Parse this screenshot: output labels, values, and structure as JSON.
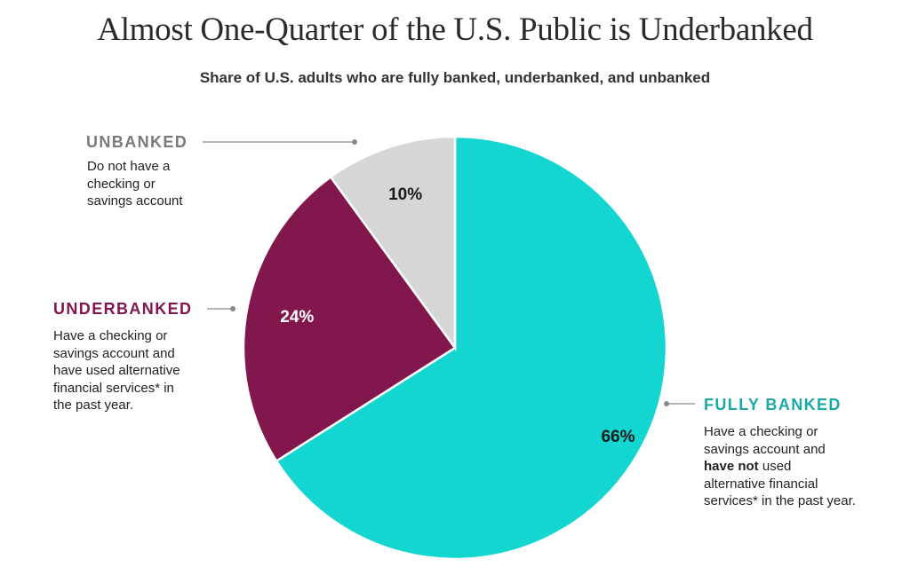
{
  "title": "Almost One-Quarter of the U.S. Public is Underbanked",
  "subtitle": "Share of U.S. adults who are fully banked, underbanked, and unbanked",
  "chart_data": {
    "type": "pie",
    "title": "Almost One-Quarter of the U.S. Public is Underbanked",
    "subtitle": "Share of U.S. adults who are fully banked, underbanked, and unbanked",
    "categories": [
      "FULLY BANKED",
      "UNDERBANKED",
      "UNBANKED"
    ],
    "values": [
      66,
      24,
      10
    ],
    "value_labels": [
      "66%",
      "24%",
      "10%"
    ],
    "colors": [
      "#12d6cf",
      "#82174d",
      "#d6d6d6"
    ],
    "label_colors": [
      "#1a1a1a",
      "#ffffff",
      "#1a1a1a"
    ],
    "title_colors": [
      "#1aa9a4",
      "#82174d",
      "#7a7a7a"
    ],
    "start": "12 o'clock",
    "direction": "clockwise"
  },
  "categories": {
    "fully": {
      "title": "FULLY BANKED",
      "desc_a": "Have a checking or",
      "desc_b": "savings account and",
      "desc_bold": "have not",
      "desc_c": " used",
      "desc_d": "alternative financial",
      "desc_e": "services* in the past year."
    },
    "under": {
      "title": "UNDERBANKED",
      "desc_a": "Have a checking or",
      "desc_b": "savings account and",
      "desc_c": "have used alternative",
      "desc_d": "financial services* in",
      "desc_e": "the past year."
    },
    "un": {
      "title": "UNBANKED",
      "desc_a": "Do not have a",
      "desc_b": "checking or",
      "desc_c": "savings account"
    }
  }
}
